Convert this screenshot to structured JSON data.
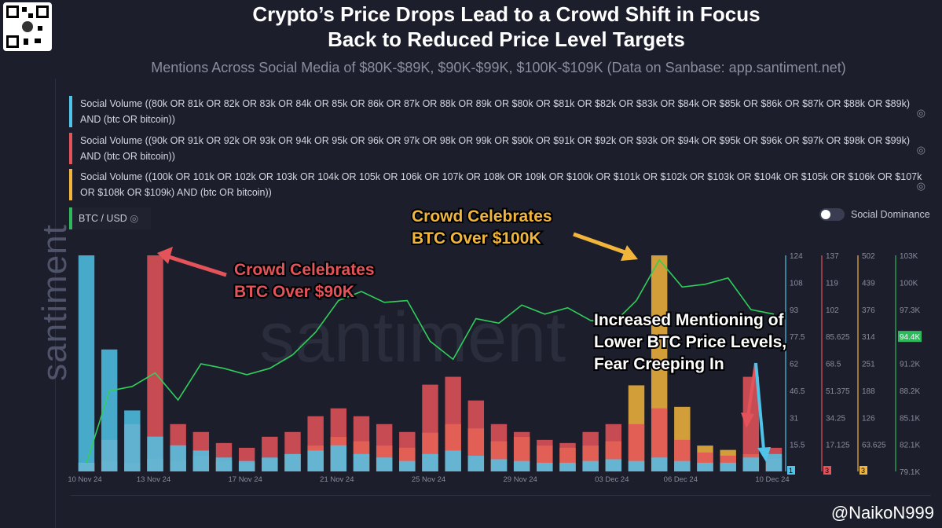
{
  "title_line1": "Crypto’s Price Drops Lead to a Crowd Shift in Focus",
  "title_line2": "Back to Reduced Price Level Targets",
  "subtitle": "Mentions Across Social Media of $80K-$89K, $90K-$99K, $100K-$109K (Data on Sanbase: app.santiment.net)",
  "watermark": "santiment",
  "legend": [
    {
      "label": "Social Volume ((80k OR 81k OR 82k OR 83k OR 84k OR 85k OR 86k OR 87k OR 88k OR 89k OR $80k OR $81k OR $82k OR $83k OR $84k OR $85k OR $86k OR $87k OR $88k OR $89k) AND (btc OR bitcoin))",
      "color": "#4fc3e8"
    },
    {
      "label": "Social Volume ((90k OR 91k OR 92k OR 93k OR 94k OR 95k OR 96k OR 97k OR 98k OR 99k OR $90k OR $91k OR $92k OR $93k OR $94k OR $95k OR $96k OR $97k OR $98k OR $99k) AND (btc OR bitcoin))",
      "color": "#e5535a"
    },
    {
      "label": "Social Volume ((100k OR 101k OR 102k OR 103k OR 104k OR 105k OR 106k OR 107k OR 108k OR 109k OR $100k OR $101k OR $102k OR $103k OR $104k OR $105k OR $106k OR $107k OR $108k OR $109k) AND (btc OR bitcoin))",
      "color": "#f2b53c"
    }
  ],
  "btc_label": "BTC / USD",
  "social_dominance_label": "Social Dominance",
  "social_dominance_on": false,
  "handle": "@NaikoN999",
  "annotations": {
    "a1": [
      "Crowd Celebrates",
      "BTC Over $90K"
    ],
    "a2": [
      "Crowd Celebrates",
      "BTC Over $100K"
    ],
    "a3": [
      "Increased Mentioning of",
      "Lower BTC Price Levels,",
      "Fear Creeping In"
    ]
  },
  "chart_data": {
    "type": "bar+line",
    "x_ticks": [
      "10 Nov 24",
      "13 Nov 24",
      "17 Nov 24",
      "21 Nov 24",
      "25 Nov 24",
      "29 Nov 24",
      "03 Dec 24",
      "06 Dec 24",
      "10 Dec 24"
    ],
    "dates": [
      "2024-11-10",
      "2024-11-11",
      "2024-11-12",
      "2024-11-13",
      "2024-11-14",
      "2024-11-15",
      "2024-11-16",
      "2024-11-17",
      "2024-11-18",
      "2024-11-19",
      "2024-11-20",
      "2024-11-21",
      "2024-11-22",
      "2024-11-23",
      "2024-11-24",
      "2024-11-25",
      "2024-11-26",
      "2024-11-27",
      "2024-11-28",
      "2024-11-29",
      "2024-11-30",
      "2024-12-01",
      "2024-12-02",
      "2024-12-03",
      "2024-12-04",
      "2024-12-05",
      "2024-12-06",
      "2024-12-07",
      "2024-12-08",
      "2024-12-09",
      "2024-12-10"
    ],
    "axes": [
      {
        "ticks": [
          "124",
          "108",
          "93",
          "77.5",
          "62",
          "46.5",
          "31",
          "15.5"
        ],
        "max": 124,
        "badge": "1",
        "color": "#4fc3e8"
      },
      {
        "ticks": [
          "137",
          "119",
          "102",
          "85.625",
          "68.5",
          "51.375",
          "34.25",
          "17.125"
        ],
        "max": 137,
        "badge": "3",
        "color": "#e5535a"
      },
      {
        "ticks": [
          "502",
          "439",
          "376",
          "314",
          "251",
          "188",
          "126",
          "63.625"
        ],
        "max": 502,
        "badge": "3",
        "color": "#f2b53c"
      },
      {
        "ticks": [
          "103K",
          "100K",
          "97.3K",
          "94.4K",
          "91.2K",
          "88.2K",
          "85.1K",
          "82.1K",
          "79.1K"
        ],
        "min": 79.1,
        "max": 103,
        "current": "94.4K",
        "color": "#2fb85c"
      }
    ],
    "series": [
      {
        "values": [
          124,
          70,
          35,
          20,
          15,
          12,
          8,
          6,
          8,
          10,
          12,
          15,
          10,
          8,
          6,
          10,
          12,
          9,
          7,
          6,
          5,
          5,
          6,
          7,
          6,
          8,
          6,
          5,
          5,
          8,
          10
        ]
      },
      {
        "values": [
          5,
          20,
          30,
          137,
          30,
          25,
          18,
          15,
          22,
          25,
          35,
          40,
          35,
          30,
          25,
          55,
          60,
          45,
          30,
          25,
          20,
          18,
          25,
          30,
          30,
          40,
          20,
          12,
          10,
          60,
          15
        ]
      },
      {
        "values": [
          20,
          25,
          20,
          30,
          25,
          35,
          25,
          20,
          30,
          40,
          60,
          80,
          70,
          60,
          55,
          90,
          110,
          100,
          70,
          80,
          60,
          55,
          60,
          70,
          200,
          502,
          150,
          60,
          50,
          40,
          30
        ]
      },
      {
        "values": [
          80,
          88,
          88.5,
          90,
          87,
          91,
          90.5,
          89.8,
          90.5,
          92,
          94.5,
          98,
          99,
          97.8,
          98,
          93.5,
          91.5,
          96,
          95.5,
          97.5,
          96.5,
          97.2,
          95.8,
          95.5,
          98,
          102.5,
          99.5,
          99.8,
          100.5,
          97,
          96.5
        ]
      }
    ]
  }
}
